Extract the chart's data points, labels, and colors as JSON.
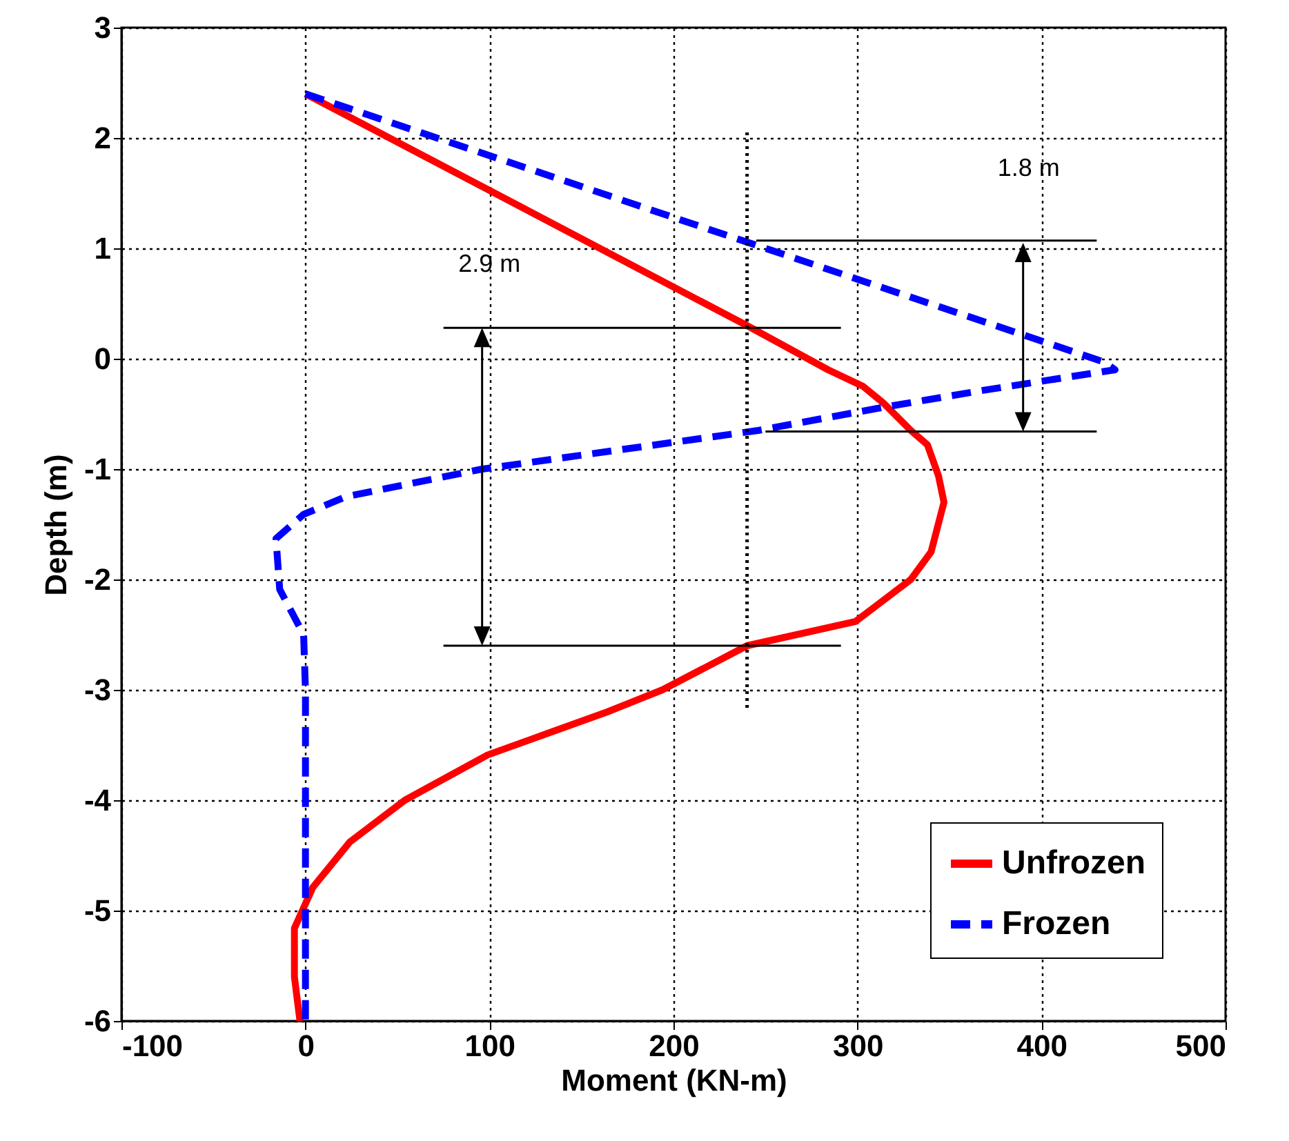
{
  "chart_data": {
    "type": "line",
    "xlabel": "Moment (KN-m)",
    "ylabel": "Depth (m)",
    "xlim": [
      -100,
      500
    ],
    "xticks": [
      -100,
      0,
      100,
      200,
      300,
      400,
      500
    ],
    "ylim": [
      -6,
      3
    ],
    "yticks": [
      -6,
      -5,
      -4,
      -3,
      -2,
      -1,
      0,
      1,
      2,
      3
    ],
    "grid": true,
    "legend": "bottom right",
    "annotations": [
      "2.9 m",
      "1.8 m"
    ],
    "ref_lines": [
      {
        "axis": "x",
        "value": 240,
        "line_style": "dotted"
      }
    ],
    "series": [
      {
        "name": "Unfrozen",
        "color": "#ff0000",
        "line_style": "solid",
        "x": [
          0,
          240,
          284,
          303,
          314,
          329,
          338,
          344,
          347,
          340,
          329,
          299,
          240,
          194,
          164,
          134,
          99,
          54,
          24,
          4,
          -6,
          -6,
          -3
        ],
        "values": [
          2.4,
          0.3,
          -0.1,
          -0.25,
          -0.4,
          -0.65,
          -0.78,
          -1.06,
          -1.3,
          -1.75,
          -2.0,
          -2.38,
          -2.6,
          -3.0,
          -3.2,
          -3.38,
          -3.59,
          -4.0,
          -4.38,
          -4.79,
          -5.16,
          -5.6,
          -6.0
        ]
      },
      {
        "name": "Frozen",
        "color": "#0000ff",
        "line_style": "dashed",
        "x": [
          0,
          434,
          440,
          367,
          314,
          246,
          96,
          22,
          -1,
          -16,
          -14,
          -1,
          0,
          0
        ],
        "values": [
          2.4,
          -0.03,
          -0.1,
          -0.29,
          -0.44,
          -0.65,
          -1.0,
          -1.25,
          -1.41,
          -1.63,
          -2.09,
          -2.5,
          -3.0,
          -6.0
        ]
      }
    ]
  }
}
